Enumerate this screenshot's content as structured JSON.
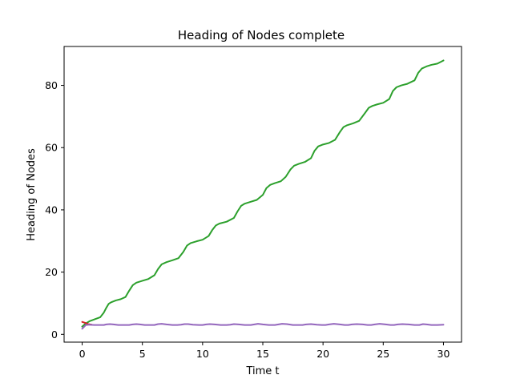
{
  "chart_data": {
    "type": "line",
    "title": "Heading of Nodes complete",
    "xlabel": "Time t",
    "ylabel": "Heading of Nodes",
    "xlim": [
      -1.5,
      31.5
    ],
    "ylim": [
      -2.5,
      92.5
    ],
    "xticks": [
      0,
      5,
      10,
      15,
      20,
      25,
      30
    ],
    "yticks": [
      0,
      20,
      40,
      60,
      80
    ],
    "grid": false,
    "legend": "none",
    "series": [
      {
        "color": "#2ca02c",
        "x": [
          0,
          0.3,
          0.6,
          1.0,
          1.5,
          1.8,
          2.0,
          2.2,
          2.4,
          2.8,
          3.2,
          3.6,
          3.9,
          4.2,
          4.5,
          5.0,
          5.5,
          6.0,
          6.3,
          6.6,
          7.0,
          7.5,
          8.0,
          8.4,
          8.7,
          9.0,
          9.5,
          10.0,
          10.5,
          10.8,
          11.1,
          11.4,
          12.0,
          12.6,
          12.9,
          13.2,
          13.5,
          14.0,
          14.5,
          15.0,
          15.3,
          15.6,
          16.0,
          16.5,
          16.9,
          17.3,
          17.6,
          18.0,
          18.5,
          19.0,
          19.3,
          19.6,
          20.0,
          20.5,
          21.0,
          21.4,
          21.7,
          22.0,
          22.5,
          23.0,
          23.5,
          23.8,
          24.1,
          24.5,
          25.0,
          25.5,
          25.8,
          26.1,
          26.5,
          27.0,
          27.6,
          27.9,
          28.2,
          28.6,
          29.0,
          29.5,
          30.0
        ],
        "y": [
          2.5,
          3.5,
          4.2,
          4.8,
          5.5,
          7.0,
          8.5,
          9.8,
          10.3,
          10.9,
          11.3,
          12.0,
          14.0,
          15.8,
          16.6,
          17.2,
          17.8,
          19.0,
          21.0,
          22.5,
          23.2,
          23.8,
          24.5,
          26.5,
          28.5,
          29.3,
          29.9,
          30.4,
          31.6,
          33.5,
          35.0,
          35.6,
          36.2,
          37.4,
          39.5,
          41.3,
          42.0,
          42.6,
          43.2,
          44.8,
          47.0,
          48.0,
          48.6,
          49.2,
          50.6,
          53.0,
          54.2,
          54.8,
          55.4,
          56.6,
          59.0,
          60.4,
          61.0,
          61.5,
          62.5,
          65.0,
          66.6,
          67.2,
          67.8,
          68.6,
          71.2,
          72.8,
          73.4,
          73.9,
          74.4,
          75.6,
          78.2,
          79.4,
          80.0,
          80.5,
          81.6,
          84.0,
          85.4,
          86.1,
          86.6,
          87.0,
          88.0
        ]
      },
      {
        "color": "#d62728",
        "x": [
          0,
          0.25,
          0.5,
          0.8
        ],
        "y": [
          4.0,
          3.7,
          3.3,
          3.1
        ]
      },
      {
        "color": "#9467bd",
        "x": [
          0,
          0.3,
          0.6,
          1.0,
          1.5,
          1.8,
          2.0,
          2.3,
          2.6,
          3.0,
          3.5,
          3.9,
          4.2,
          4.5,
          4.8,
          5.2,
          5.7,
          6.0,
          6.3,
          6.6,
          7.0,
          7.5,
          7.9,
          8.2,
          8.5,
          8.8,
          9.2,
          9.7,
          10.0,
          10.3,
          10.6,
          11.0,
          11.5,
          12.0,
          12.3,
          12.6,
          13.0,
          13.5,
          14.0,
          14.3,
          14.6,
          15.0,
          15.5,
          16.0,
          16.3,
          16.6,
          17.0,
          17.5,
          18.0,
          18.3,
          18.6,
          19.0,
          19.5,
          19.9,
          20.2,
          20.5,
          20.9,
          21.4,
          21.8,
          22.1,
          22.4,
          22.8,
          23.3,
          23.7,
          24.0,
          24.3,
          24.7,
          25.2,
          25.6,
          25.9,
          26.2,
          26.6,
          27.1,
          27.6,
          28.0,
          28.3,
          28.6,
          29.0,
          29.5,
          30.0
        ],
        "y": [
          1.8,
          3.0,
          3.1,
          3.0,
          3.0,
          3.0,
          3.2,
          3.3,
          3.2,
          3.0,
          3.0,
          3.0,
          3.2,
          3.3,
          3.2,
          3.0,
          3.0,
          3.0,
          3.3,
          3.4,
          3.2,
          3.0,
          3.0,
          3.1,
          3.3,
          3.3,
          3.1,
          3.0,
          3.0,
          3.2,
          3.3,
          3.2,
          3.0,
          3.0,
          3.1,
          3.3,
          3.2,
          3.0,
          3.0,
          3.2,
          3.4,
          3.2,
          3.0,
          3.0,
          3.2,
          3.4,
          3.3,
          3.0,
          3.0,
          3.0,
          3.2,
          3.3,
          3.1,
          3.0,
          3.0,
          3.2,
          3.4,
          3.2,
          3.0,
          3.0,
          3.2,
          3.3,
          3.2,
          3.0,
          3.0,
          3.2,
          3.4,
          3.2,
          3.0,
          3.0,
          3.2,
          3.3,
          3.2,
          3.0,
          3.0,
          3.3,
          3.2,
          3.0,
          3.0,
          3.1
        ]
      }
    ]
  }
}
